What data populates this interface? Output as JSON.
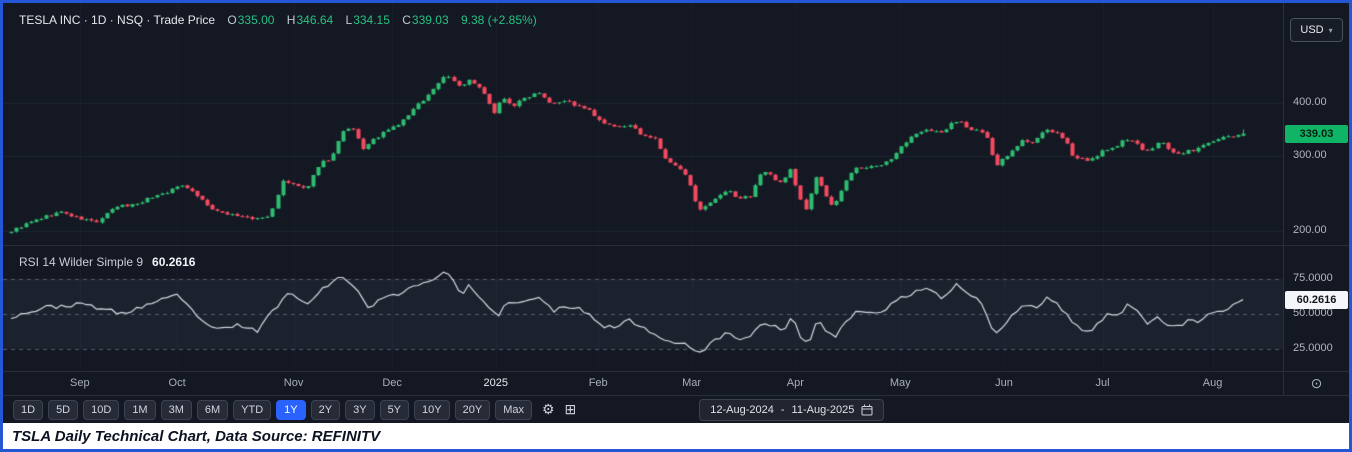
{
  "header": {
    "title": "TESLA INC · 1D · NSQ · Trade Price",
    "ohlc": {
      "o_label": "O",
      "o": "335.00",
      "h_label": "H",
      "h": "346.64",
      "l_label": "L",
      "l": "334.15",
      "c_label": "C",
      "c": "339.03",
      "change_text": "9.38 (+2.85%)"
    }
  },
  "price_axis": {
    "currency": "USD",
    "ticks": [
      {
        "label": "400.00",
        "value": 400
      },
      {
        "label": "300.00",
        "value": 300
      },
      {
        "label": "200.00",
        "value": 200
      }
    ],
    "last_price": 339.03,
    "last_price_label": "339.03"
  },
  "rsi": {
    "title": "RSI 14 Wilder Simple 9",
    "value": 60.2616,
    "value_label": "60.2616",
    "ticks": [
      {
        "label": "75.0000",
        "value": 75
      },
      {
        "label": "50.0000",
        "value": 50
      },
      {
        "label": "25.0000",
        "value": 25
      }
    ]
  },
  "time_axis": {
    "labels": [
      {
        "text": "Sep",
        "x": 0.06
      },
      {
        "text": "Oct",
        "x": 0.136
      },
      {
        "text": "Nov",
        "x": 0.227
      },
      {
        "text": "Dec",
        "x": 0.304
      },
      {
        "text": "2025",
        "x": 0.385,
        "emphasis": true
      },
      {
        "text": "Feb",
        "x": 0.465
      },
      {
        "text": "Mar",
        "x": 0.538
      },
      {
        "text": "Apr",
        "x": 0.619
      },
      {
        "text": "May",
        "x": 0.701
      },
      {
        "text": "Jun",
        "x": 0.782
      },
      {
        "text": "Jul",
        "x": 0.859
      },
      {
        "text": "Aug",
        "x": 0.945
      }
    ]
  },
  "toolbar": {
    "ranges": [
      "1D",
      "5D",
      "10D",
      "1M",
      "3M",
      "6M",
      "YTD",
      "1Y",
      "2Y",
      "3Y",
      "5Y",
      "10Y",
      "20Y",
      "Max"
    ],
    "active": "1Y",
    "date_range": {
      "start": "12-Aug-2024",
      "sep": "-",
      "end": "11-Aug-2025"
    }
  },
  "icons": {
    "chevron_down": "▾",
    "gear": "⚙",
    "grid": "⊞",
    "target": "⊙"
  },
  "caption": "TSLA Daily Technical Chart, Data Source: REFINITV",
  "colors": {
    "background": "#141823",
    "up": "#2dbd70",
    "down": "#f34a5f",
    "rsi_line": "#d4d8e0",
    "rsi_band": "rgba(148,160,196,0.07)",
    "rsi_grid": "#555b69",
    "grid_vertical": "#1a1f2b",
    "grid_horizontal": "#1d2330",
    "accent_blue": "#2962ff",
    "badge_green": "#10b467",
    "frame_border": "#2457d6"
  },
  "chart_data": [
    {
      "type": "candlestick",
      "symbol": "TSLA",
      "interval": "1D",
      "x_range": [
        "12-Aug-2024",
        "11-Aug-2025"
      ],
      "y_scale": "log",
      "y_ticks": [
        200,
        300,
        400
      ],
      "last": {
        "open": 335.0,
        "high": 346.64,
        "low": 334.15,
        "close": 339.03,
        "change": 9.38,
        "change_pct": 2.85
      },
      "candle_count": 246,
      "wiggle_seed": 9,
      "anchors": [
        [
          0.0,
          200
        ],
        [
          0.01,
          206
        ],
        [
          0.022,
          213
        ],
        [
          0.04,
          222
        ],
        [
          0.055,
          214
        ],
        [
          0.07,
          210
        ],
        [
          0.085,
          228
        ],
        [
          0.1,
          231
        ],
        [
          0.115,
          241
        ],
        [
          0.128,
          248
        ],
        [
          0.14,
          258
        ],
        [
          0.152,
          241
        ],
        [
          0.165,
          222
        ],
        [
          0.18,
          219
        ],
        [
          0.195,
          213
        ],
        [
          0.21,
          216
        ],
        [
          0.22,
          261
        ],
        [
          0.23,
          257
        ],
        [
          0.24,
          250
        ],
        [
          0.25,
          289
        ],
        [
          0.26,
          297
        ],
        [
          0.268,
          339
        ],
        [
          0.276,
          350
        ],
        [
          0.286,
          312
        ],
        [
          0.296,
          331
        ],
        [
          0.306,
          345
        ],
        [
          0.316,
          358
        ],
        [
          0.328,
          390
        ],
        [
          0.34,
          421
        ],
        [
          0.35,
          458
        ],
        [
          0.354,
          466
        ],
        [
          0.36,
          448
        ],
        [
          0.366,
          436
        ],
        [
          0.372,
          454
        ],
        [
          0.38,
          431
        ],
        [
          0.386,
          410
        ],
        [
          0.392,
          380
        ],
        [
          0.398,
          411
        ],
        [
          0.408,
          395
        ],
        [
          0.418,
          413
        ],
        [
          0.428,
          426
        ],
        [
          0.438,
          400
        ],
        [
          0.45,
          406
        ],
        [
          0.462,
          390
        ],
        [
          0.47,
          383
        ],
        [
          0.478,
          361
        ],
        [
          0.49,
          350
        ],
        [
          0.5,
          355
        ],
        [
          0.512,
          337
        ],
        [
          0.522,
          330
        ],
        [
          0.532,
          291
        ],
        [
          0.542,
          281
        ],
        [
          0.55,
          263
        ],
        [
          0.558,
          222
        ],
        [
          0.566,
          230
        ],
        [
          0.574,
          240
        ],
        [
          0.582,
          249
        ],
        [
          0.59,
          238
        ],
        [
          0.6,
          242
        ],
        [
          0.61,
          278
        ],
        [
          0.618,
          268
        ],
        [
          0.626,
          259
        ],
        [
          0.632,
          282
        ],
        [
          0.64,
          239
        ],
        [
          0.646,
          221
        ],
        [
          0.652,
          272
        ],
        [
          0.658,
          252
        ],
        [
          0.666,
          227
        ],
        [
          0.674,
          250
        ],
        [
          0.684,
          284
        ],
        [
          0.696,
          281
        ],
        [
          0.706,
          287
        ],
        [
          0.716,
          298
        ],
        [
          0.724,
          318
        ],
        [
          0.732,
          334
        ],
        [
          0.742,
          349
        ],
        [
          0.75,
          343
        ],
        [
          0.757,
          339
        ],
        [
          0.764,
          362
        ],
        [
          0.772,
          358
        ],
        [
          0.78,
          346
        ],
        [
          0.786,
          342
        ],
        [
          0.792,
          332
        ],
        [
          0.798,
          284
        ],
        [
          0.804,
          295
        ],
        [
          0.812,
          308
        ],
        [
          0.82,
          326
        ],
        [
          0.83,
          322
        ],
        [
          0.84,
          348
        ],
        [
          0.848,
          340
        ],
        [
          0.856,
          323
        ],
        [
          0.862,
          300
        ],
        [
          0.872,
          294
        ],
        [
          0.88,
          295
        ],
        [
          0.888,
          313
        ],
        [
          0.896,
          311
        ],
        [
          0.904,
          329
        ],
        [
          0.912,
          328
        ],
        [
          0.92,
          305
        ],
        [
          0.928,
          316
        ],
        [
          0.934,
          325
        ],
        [
          0.94,
          308
        ],
        [
          0.946,
          302
        ],
        [
          0.954,
          309
        ],
        [
          0.96,
          308
        ],
        [
          0.966,
          319
        ],
        [
          0.974,
          322
        ],
        [
          0.982,
          330
        ],
        [
          0.992,
          335
        ],
        [
          1.0,
          339.03
        ]
      ]
    },
    {
      "type": "line",
      "name": "RSI 14 Wilder Simple 9",
      "y_ticks": [
        25,
        50,
        75
      ],
      "y_range": [
        15,
        90
      ],
      "last": 60.2616,
      "wiggle_seed": 23,
      "approx_points": [
        [
          0.0,
          48
        ],
        [
          0.03,
          55
        ],
        [
          0.06,
          57
        ],
        [
          0.09,
          50
        ],
        [
          0.115,
          58
        ],
        [
          0.135,
          63
        ],
        [
          0.15,
          50
        ],
        [
          0.165,
          38
        ],
        [
          0.185,
          42
        ],
        [
          0.2,
          38
        ],
        [
          0.215,
          55
        ],
        [
          0.225,
          65
        ],
        [
          0.24,
          58
        ],
        [
          0.255,
          70
        ],
        [
          0.268,
          76
        ],
        [
          0.276,
          73
        ],
        [
          0.29,
          55
        ],
        [
          0.3,
          60
        ],
        [
          0.315,
          65
        ],
        [
          0.33,
          71
        ],
        [
          0.345,
          76
        ],
        [
          0.355,
          80
        ],
        [
          0.365,
          64
        ],
        [
          0.372,
          70
        ],
        [
          0.385,
          56
        ],
        [
          0.395,
          48
        ],
        [
          0.4,
          57
        ],
        [
          0.415,
          58
        ],
        [
          0.43,
          62
        ],
        [
          0.44,
          52
        ],
        [
          0.455,
          56
        ],
        [
          0.47,
          50
        ],
        [
          0.48,
          42
        ],
        [
          0.49,
          40
        ],
        [
          0.5,
          46
        ],
        [
          0.515,
          40
        ],
        [
          0.53,
          31
        ],
        [
          0.545,
          30
        ],
        [
          0.558,
          22
        ],
        [
          0.57,
          30
        ],
        [
          0.582,
          37
        ],
        [
          0.59,
          32
        ],
        [
          0.6,
          34
        ],
        [
          0.61,
          45
        ],
        [
          0.62,
          41
        ],
        [
          0.628,
          38
        ],
        [
          0.634,
          48
        ],
        [
          0.642,
          32
        ],
        [
          0.648,
          28
        ],
        [
          0.654,
          45
        ],
        [
          0.66,
          40
        ],
        [
          0.668,
          33
        ],
        [
          0.676,
          42
        ],
        [
          0.686,
          52
        ],
        [
          0.698,
          50
        ],
        [
          0.71,
          54
        ],
        [
          0.724,
          62
        ],
        [
          0.735,
          66
        ],
        [
          0.744,
          70
        ],
        [
          0.752,
          64
        ],
        [
          0.758,
          61
        ],
        [
          0.766,
          71
        ],
        [
          0.775,
          67
        ],
        [
          0.783,
          61
        ],
        [
          0.79,
          55
        ],
        [
          0.798,
          35
        ],
        [
          0.806,
          42
        ],
        [
          0.814,
          50
        ],
        [
          0.822,
          57
        ],
        [
          0.832,
          54
        ],
        [
          0.842,
          62
        ],
        [
          0.85,
          57
        ],
        [
          0.858,
          48
        ],
        [
          0.866,
          40
        ],
        [
          0.874,
          38
        ],
        [
          0.882,
          42
        ],
        [
          0.89,
          50
        ],
        [
          0.898,
          48
        ],
        [
          0.906,
          56
        ],
        [
          0.914,
          54
        ],
        [
          0.922,
          43
        ],
        [
          0.93,
          50
        ],
        [
          0.938,
          42
        ],
        [
          0.946,
          40
        ],
        [
          0.955,
          45
        ],
        [
          0.963,
          44
        ],
        [
          0.972,
          49
        ],
        [
          0.982,
          52
        ],
        [
          0.992,
          56
        ],
        [
          1.0,
          60.2616
        ]
      ]
    }
  ]
}
